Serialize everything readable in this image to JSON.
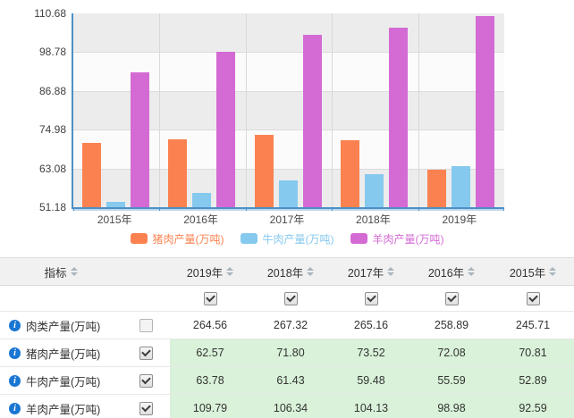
{
  "colors": {
    "pork": "#fb8250",
    "beef": "#86c9ee",
    "mutton": "#d46bd4",
    "axis_blue": "#4a90c9",
    "band_gray": "#ececec",
    "band_white": "#fbfbfb",
    "highlight_green": "#d9f2d9",
    "header_gray": "#f1f1f1"
  },
  "chart_data": {
    "type": "bar",
    "categories": [
      "2015年",
      "2016年",
      "2017年",
      "2018年",
      "2019年"
    ],
    "series": [
      {
        "name": "猪肉产量(万吨)",
        "color": "#fb8250",
        "values": [
          70.81,
          72.08,
          73.52,
          71.8,
          62.57
        ]
      },
      {
        "name": "牛肉产量(万吨)",
        "color": "#86c9ee",
        "values": [
          52.89,
          55.59,
          59.48,
          61.43,
          63.78
        ]
      },
      {
        "name": "羊肉产量(万吨)",
        "color": "#d46bd4",
        "values": [
          92.59,
          98.98,
          104.13,
          106.34,
          109.79
        ]
      }
    ],
    "title": "",
    "xlabel": "",
    "ylabel": "",
    "ylim": [
      51.18,
      110.68
    ],
    "y_tick_labels": [
      "110.68",
      "98.78",
      "86.88",
      "74.98",
      "63.08",
      "51.18"
    ],
    "grid": true,
    "legend_position": "bottom"
  },
  "table": {
    "indicator_header": "指标",
    "year_headers": [
      "2019年",
      "2018年",
      "2017年",
      "2016年",
      "2015年"
    ],
    "column_checkboxes": [
      true,
      true,
      true,
      true,
      true
    ],
    "rows": [
      {
        "label": "肉类产量(万吨)",
        "checked": false,
        "highlight": false,
        "values": [
          "264.56",
          "267.32",
          "265.16",
          "258.89",
          "245.71"
        ]
      },
      {
        "label": "猪肉产量(万吨)",
        "checked": true,
        "highlight": true,
        "values": [
          "62.57",
          "71.80",
          "73.52",
          "72.08",
          "70.81"
        ]
      },
      {
        "label": "牛肉产量(万吨)",
        "checked": true,
        "highlight": true,
        "values": [
          "63.78",
          "61.43",
          "59.48",
          "55.59",
          "52.89"
        ]
      },
      {
        "label": "羊肉产量(万吨)",
        "checked": true,
        "highlight": true,
        "values": [
          "109.79",
          "106.34",
          "104.13",
          "98.98",
          "92.59"
        ]
      }
    ]
  }
}
